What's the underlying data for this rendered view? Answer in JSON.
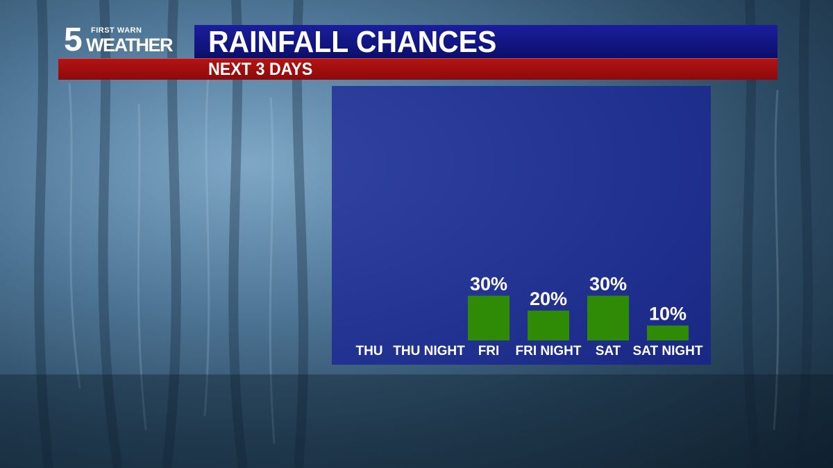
{
  "logo": {
    "number": "5",
    "tagline": "FIRST WARN",
    "word": "WEATHER"
  },
  "header": {
    "title": "RAINFALL CHANCES",
    "subtitle": "NEXT 3 DAYS"
  },
  "colors": {
    "title_bar": "#0d1276",
    "subtitle_bar": "#a50f0f",
    "panel": "#161e96",
    "bar": "#2f8a06"
  },
  "chart_data": {
    "type": "bar",
    "categories": [
      "THU",
      "THU NIGHT",
      "FRI",
      "FRI NIGHT",
      "SAT",
      "SAT NIGHT"
    ],
    "values": [
      0,
      0,
      30,
      20,
      30,
      10
    ],
    "value_labels": [
      "",
      "",
      "30%",
      "20%",
      "30%",
      "10%"
    ],
    "unit": "%",
    "title": "RAINFALL CHANCES",
    "subtitle": "NEXT 3 DAYS",
    "xlabel": "",
    "ylabel": "",
    "grid": false,
    "legend": "none"
  }
}
